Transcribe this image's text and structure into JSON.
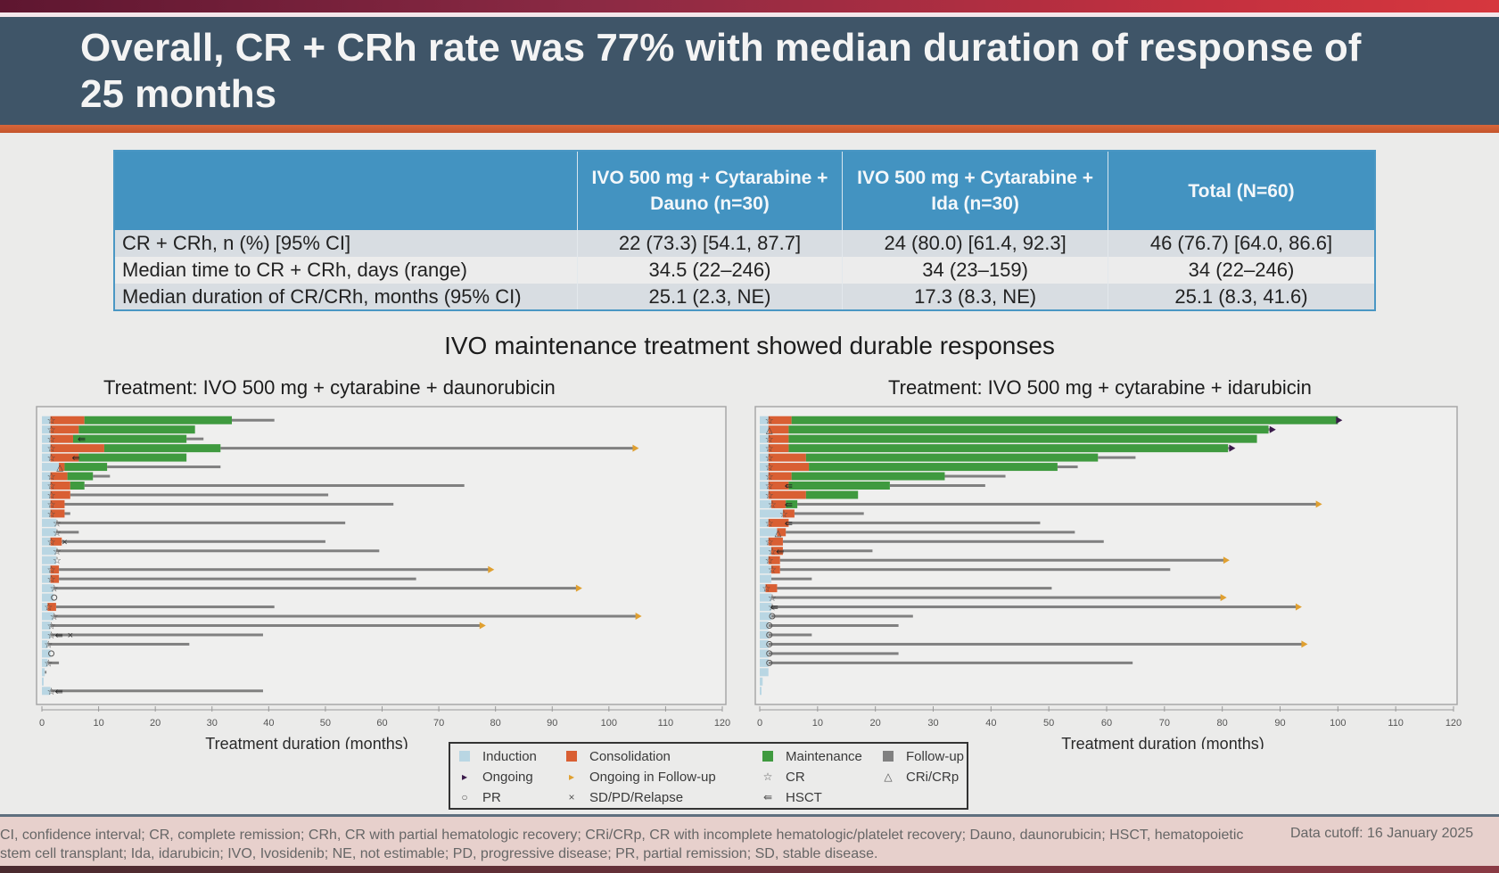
{
  "header": {
    "title": "Overall, CR + CRh rate was 77% with median duration of response of 25 months"
  },
  "summary_table": {
    "columns": [
      "",
      "IVO 500 mg + Cytarabine + Dauno (n=30)",
      "IVO 500 mg + Cytarabine + Ida (n=30)",
      "Total (N=60)"
    ],
    "rows": [
      [
        "CR + CRh, n (%) [95% CI]",
        "22 (73.3) [54.1, 87.7]",
        "24 (80.0) [61.4, 92.3]",
        "46 (76.7) [64.0, 86.6]"
      ],
      [
        "Median time to CR + CRh, days (range)",
        "34.5 (22–246)",
        "34 (23–159)",
        "34 (22–246)"
      ],
      [
        "Median duration of CR/CRh, months (95% CI)",
        "25.1 (2.3, NE)",
        "17.3 (8.3, NE)",
        "25.1 (8.3, 41.6)"
      ]
    ]
  },
  "subtitle": "IVO maintenance treatment showed durable responses",
  "legend": {
    "items": [
      {
        "label": "Induction",
        "kind": "square",
        "color": "#b9d6e3"
      },
      {
        "label": "Consolidation",
        "kind": "square",
        "color": "#d95f33"
      },
      {
        "label": "Maintenance",
        "kind": "square",
        "color": "#3f9a3f"
      },
      {
        "label": "Follow-up",
        "kind": "square",
        "color": "#808080"
      },
      {
        "label": "Ongoing",
        "kind": "symbol",
        "glyph": "▸",
        "color": "#3a1a4a"
      },
      {
        "label": "Ongoing in Follow-up",
        "kind": "symbol",
        "glyph": "▸",
        "color": "#e0a030"
      },
      {
        "label": "CR",
        "kind": "symbol",
        "glyph": "☆",
        "color": "#555"
      },
      {
        "label": "CRi/CRp",
        "kind": "symbol",
        "glyph": "△",
        "color": "#555"
      },
      {
        "label": "PR",
        "kind": "symbol",
        "glyph": "○",
        "color": "#555"
      },
      {
        "label": "SD/PD/Relapse",
        "kind": "symbol",
        "glyph": "×",
        "color": "#555"
      },
      {
        "label": "HSCT",
        "kind": "symbol",
        "glyph": "⇚",
        "color": "#555"
      }
    ]
  },
  "colors": {
    "induction": "#b9d6e3",
    "consolidation": "#d95f33",
    "maintenance": "#3f9a3f",
    "followup": "#808080",
    "ongoing": "#3a1a4a",
    "ongoing_followup": "#e0a030"
  },
  "chart_data": [
    {
      "type": "swimmer",
      "title": "Treatment: IVO 500 mg + cytarabine + daunorubicin",
      "xlabel": "Treatment duration (months)",
      "xlim": [
        0,
        120
      ],
      "xticks": [
        0,
        10,
        20,
        30,
        40,
        50,
        60,
        70,
        80,
        90,
        100,
        110,
        120
      ],
      "grid": false,
      "series_order": [
        "induction",
        "consolidation",
        "maintenance",
        "followup"
      ],
      "patients": [
        {
          "induction": 1.5,
          "consolidation": 6.0,
          "maintenance": 26.0,
          "end": 41.0,
          "resp": "CR",
          "end_marker": "none"
        },
        {
          "induction": 1.5,
          "consolidation": 5.0,
          "maintenance": 20.5,
          "end": 24.5,
          "resp": "CR",
          "end_marker": "none"
        },
        {
          "induction": 1.5,
          "consolidation": 4.0,
          "maintenance": 20.0,
          "end": 28.5,
          "resp": "CR",
          "hsct": 7.0,
          "end_marker": "none"
        },
        {
          "induction": 1.5,
          "consolidation": 9.5,
          "maintenance": 20.5,
          "end": 104.5,
          "resp": "CR",
          "end_marker": "ongoing_followup"
        },
        {
          "induction": 1.5,
          "consolidation": 5.0,
          "maintenance": 19.0,
          "end": 19.0,
          "resp": "CR",
          "hsct": 6.0,
          "end_marker": "none"
        },
        {
          "induction": 3.0,
          "consolidation": 1.0,
          "maintenance": 7.5,
          "end": 31.5,
          "resp": "CRi",
          "end_marker": "none"
        },
        {
          "induction": 1.5,
          "consolidation": 3.0,
          "maintenance": 4.5,
          "end": 12.0,
          "resp": "CR",
          "end_marker": "none"
        },
        {
          "induction": 1.5,
          "consolidation": 3.5,
          "maintenance": 2.5,
          "end": 74.5,
          "resp": "CR",
          "end_marker": "none"
        },
        {
          "induction": 1.5,
          "consolidation": 3.5,
          "maintenance": 0,
          "end": 50.5,
          "resp": "CR",
          "end_marker": "none"
        },
        {
          "induction": 1.5,
          "consolidation": 2.5,
          "maintenance": 0,
          "end": 62.0,
          "resp": "CR",
          "end_marker": "none"
        },
        {
          "induction": 1.5,
          "consolidation": 2.5,
          "maintenance": 0,
          "end": 5.0,
          "resp": "CR",
          "end_marker": "none"
        },
        {
          "induction": 2.5,
          "consolidation": 0,
          "maintenance": 0,
          "end": 53.5,
          "resp": "CR",
          "end_marker": "none"
        },
        {
          "induction": 2.5,
          "consolidation": 0,
          "maintenance": 0,
          "end": 6.5,
          "resp": "CR",
          "end_marker": "none"
        },
        {
          "induction": 1.5,
          "consolidation": 2.0,
          "maintenance": 0,
          "end": 50.0,
          "resp": "CR",
          "relapse": 4.0,
          "end_marker": "none"
        },
        {
          "induction": 2.5,
          "consolidation": 0,
          "maintenance": 0,
          "end": 59.5,
          "resp": "CR",
          "end_marker": "none"
        },
        {
          "induction": 2.5,
          "consolidation": 0,
          "maintenance": 0,
          "end": 2.5,
          "resp": "CR",
          "end_marker": "none"
        },
        {
          "induction": 1.5,
          "consolidation": 1.5,
          "maintenance": 0,
          "end": 79.0,
          "resp": "CR",
          "end_marker": "ongoing_followup"
        },
        {
          "induction": 1.5,
          "consolidation": 1.5,
          "maintenance": 0,
          "end": 66.0,
          "resp": "CR",
          "end_marker": "none"
        },
        {
          "induction": 2.0,
          "consolidation": 0,
          "maintenance": 0,
          "end": 94.5,
          "resp": "CR",
          "end_marker": "ongoing_followup"
        },
        {
          "induction": 2.0,
          "consolidation": 0,
          "maintenance": 0,
          "end": 2.0,
          "resp": "PR",
          "end_marker": "none"
        },
        {
          "induction": 1.0,
          "consolidation": 1.5,
          "maintenance": 0,
          "end": 41.0,
          "resp": "CR",
          "end_marker": "none"
        },
        {
          "induction": 2.0,
          "consolidation": 0,
          "maintenance": 0,
          "end": 105.0,
          "resp": "CR",
          "end_marker": "ongoing_followup"
        },
        {
          "induction": 1.5,
          "consolidation": 0,
          "maintenance": 0,
          "end": 77.5,
          "resp": "CR",
          "end_marker": "ongoing_followup"
        },
        {
          "induction": 1.5,
          "consolidation": 0,
          "maintenance": 0,
          "end": 39.0,
          "resp": "CR",
          "hsct": 3.0,
          "relapse": 5.0,
          "end_marker": "none"
        },
        {
          "induction": 1.0,
          "consolidation": 0,
          "maintenance": 0,
          "end": 26.0,
          "resp": "CR",
          "end_marker": "none"
        },
        {
          "induction": 1.5,
          "consolidation": 0,
          "maintenance": 0,
          "end": 1.5,
          "resp": "PR",
          "end_marker": "none"
        },
        {
          "induction": 1.0,
          "consolidation": 0,
          "maintenance": 0,
          "end": 3.0,
          "resp": "CR",
          "end_marker": "none"
        },
        {
          "induction": 0.5,
          "consolidation": 0,
          "maintenance": 0,
          "end": 0.8,
          "resp": "none",
          "end_marker": "none"
        },
        {
          "induction": 0.3,
          "consolidation": 0,
          "maintenance": 0,
          "end": 0.3,
          "resp": "none",
          "end_marker": "none"
        },
        {
          "induction": 1.5,
          "consolidation": 0,
          "maintenance": 0,
          "end": 39.0,
          "resp": "CR",
          "hsct": 3.0,
          "end_marker": "none"
        }
      ]
    },
    {
      "type": "swimmer",
      "title": "Treatment: IVO 500 mg + cytarabine + idarubicin",
      "xlabel": "Treatment duration (months)",
      "xlim": [
        0,
        120
      ],
      "xticks": [
        0,
        10,
        20,
        30,
        40,
        50,
        60,
        70,
        80,
        90,
        100,
        110,
        120
      ],
      "grid": false,
      "series_order": [
        "induction",
        "consolidation",
        "maintenance",
        "followup"
      ],
      "patients": [
        {
          "induction": 1.5,
          "consolidation": 4.0,
          "maintenance": 94.5,
          "end": 100.0,
          "resp": "CR",
          "end_marker": "ongoing"
        },
        {
          "induction": 1.5,
          "consolidation": 3.5,
          "maintenance": 83.0,
          "end": 88.5,
          "resp": "CRi",
          "end_marker": "ongoing"
        },
        {
          "induction": 1.5,
          "consolidation": 3.5,
          "maintenance": 81.0,
          "end": 86.0,
          "resp": "CR",
          "end_marker": "none"
        },
        {
          "induction": 1.5,
          "consolidation": 3.5,
          "maintenance": 76.0,
          "end": 81.5,
          "resp": "CR",
          "end_marker": "ongoing"
        },
        {
          "induction": 1.5,
          "consolidation": 6.5,
          "maintenance": 50.5,
          "end": 65.0,
          "resp": "CR",
          "end_marker": "none"
        },
        {
          "induction": 1.5,
          "consolidation": 7.0,
          "maintenance": 43.0,
          "end": 55.0,
          "resp": "CR",
          "end_marker": "none"
        },
        {
          "induction": 1.5,
          "consolidation": 4.0,
          "maintenance": 26.5,
          "end": 42.5,
          "resp": "CR",
          "end_marker": "none"
        },
        {
          "induction": 1.5,
          "consolidation": 3.5,
          "maintenance": 17.5,
          "end": 39.0,
          "resp": "CR",
          "hsct": 5.0,
          "end_marker": "none"
        },
        {
          "induction": 1.5,
          "consolidation": 6.5,
          "maintenance": 9.0,
          "end": 17.0,
          "resp": "CR",
          "end_marker": "none"
        },
        {
          "induction": 2.0,
          "consolidation": 2.5,
          "maintenance": 2.0,
          "end": 96.5,
          "resp": "CR",
          "hsct": 5.0,
          "end_marker": "ongoing_followup"
        },
        {
          "induction": 4.0,
          "consolidation": 2.0,
          "maintenance": 0,
          "end": 18.0,
          "resp": "CR",
          "end_marker": "none"
        },
        {
          "induction": 1.5,
          "consolidation": 3.5,
          "maintenance": 0,
          "end": 48.5,
          "resp": "CR",
          "hsct": 5.0,
          "end_marker": "none"
        },
        {
          "induction": 3.0,
          "consolidation": 1.5,
          "maintenance": 0,
          "end": 54.5,
          "resp": "CRi",
          "end_marker": "none"
        },
        {
          "induction": 1.5,
          "consolidation": 2.5,
          "maintenance": 0,
          "end": 59.5,
          "resp": "CR",
          "end_marker": "none"
        },
        {
          "induction": 2.0,
          "consolidation": 2.0,
          "maintenance": 0,
          "end": 19.5,
          "resp": "CR",
          "hsct": 3.5,
          "end_marker": "none"
        },
        {
          "induction": 1.5,
          "consolidation": 2.0,
          "maintenance": 0,
          "end": 80.5,
          "resp": "CR",
          "end_marker": "ongoing_followup"
        },
        {
          "induction": 2.0,
          "consolidation": 1.5,
          "maintenance": 0,
          "end": 71.0,
          "resp": "CR",
          "end_marker": "none"
        },
        {
          "induction": 2.0,
          "consolidation": 0,
          "maintenance": 0,
          "end": 9.0,
          "resp": "none",
          "end_marker": "none"
        },
        {
          "induction": 1.0,
          "consolidation": 2.0,
          "maintenance": 0,
          "end": 50.5,
          "resp": "CR",
          "end_marker": "none"
        },
        {
          "induction": 2.0,
          "consolidation": 0,
          "maintenance": 0,
          "end": 80.0,
          "resp": "CR",
          "end_marker": "ongoing_followup"
        },
        {
          "induction": 2.0,
          "consolidation": 0,
          "maintenance": 0,
          "end": 93.0,
          "resp": "CR",
          "hsct": 2.5,
          "end_marker": "ongoing_followup"
        },
        {
          "induction": 2.0,
          "consolidation": 0,
          "maintenance": 0,
          "end": 26.5,
          "resp": "PR",
          "end_marker": "none"
        },
        {
          "induction": 1.5,
          "consolidation": 0,
          "maintenance": 0,
          "end": 24.0,
          "resp": "PR",
          "end_marker": "none"
        },
        {
          "induction": 1.5,
          "consolidation": 0,
          "maintenance": 0,
          "end": 9.0,
          "resp": "PR",
          "end_marker": "none"
        },
        {
          "induction": 1.5,
          "consolidation": 0,
          "maintenance": 0,
          "end": 94.0,
          "resp": "PR",
          "end_marker": "ongoing_followup"
        },
        {
          "induction": 1.5,
          "consolidation": 0,
          "maintenance": 0,
          "end": 24.0,
          "resp": "PR",
          "end_marker": "none"
        },
        {
          "induction": 1.5,
          "consolidation": 0,
          "maintenance": 0,
          "end": 64.5,
          "resp": "PR",
          "end_marker": "none"
        },
        {
          "induction": 1.5,
          "consolidation": 0,
          "maintenance": 0,
          "end": 1.5,
          "resp": "none",
          "end_marker": "none"
        },
        {
          "induction": 0.5,
          "consolidation": 0,
          "maintenance": 0,
          "end": 0.5,
          "resp": "none",
          "end_marker": "none"
        },
        {
          "induction": 0.3,
          "consolidation": 0,
          "maintenance": 0,
          "end": 0.3,
          "resp": "none",
          "end_marker": "none"
        }
      ]
    }
  ],
  "footer": {
    "abbreviations": "CI, confidence interval; CR, complete remission; CRh, CR with partial hematologic recovery; CRi/CRp, CR with incomplete hematologic/platelet recovery; Dauno, daunorubicin; HSCT, hematopoietic stem cell transplant; Ida, idarubicin; IVO, Ivosidenib; NE, not estimable; PD, progressive disease; PR, partial remission; SD, stable disease.",
    "cutoff": "Data cutoff: 16 January 2025"
  }
}
